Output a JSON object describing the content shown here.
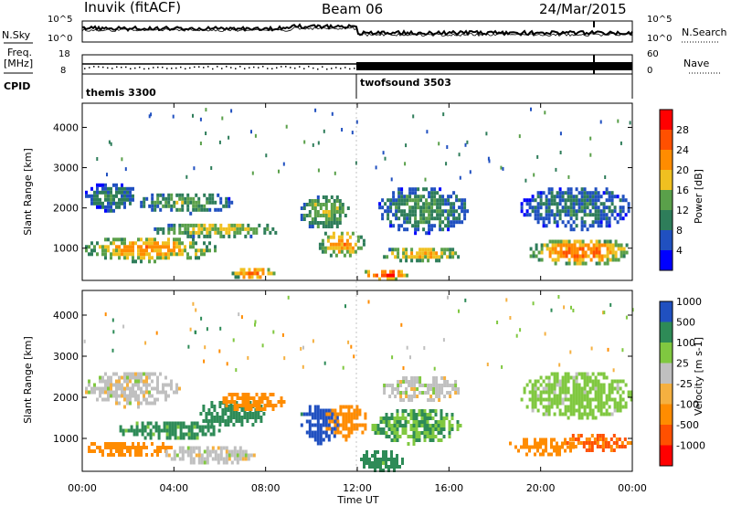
{
  "header": {
    "station": "Inuvik",
    "mode": "(fitACF)",
    "beam": "Beam 06",
    "date": "24/Mar/2015"
  },
  "noise_panel": {
    "left_label": "N.Sky",
    "left_ticks": [
      "10^5",
      "10^0"
    ],
    "right_ticks": [
      "10^5",
      "10^0"
    ],
    "right_label": "N.Search"
  },
  "freq_panel": {
    "left_label_line1": "Freq.",
    "left_label_line2": "[MHz]",
    "left_ticks": [
      "18",
      "8"
    ],
    "right_ticks": [
      "60",
      "0"
    ],
    "right_label": "Nave"
  },
  "cpid": {
    "label": "CPID",
    "segments": [
      {
        "name": "themis 3300",
        "start_hour": 0
      },
      {
        "name": "twofsound 3503",
        "start_hour": 12
      }
    ]
  },
  "x_axis": {
    "label": "Time UT",
    "ticks": [
      "00:00",
      "04:00",
      "08:00",
      "12:00",
      "16:00",
      "20:00",
      "00:00"
    ]
  },
  "colors": {
    "power_scale": [
      "#0000ff",
      "#2050c0",
      "#2e7d5a",
      "#5aa04a",
      "#f0c020",
      "#ff8c00",
      "#ff5000",
      "#ff0000"
    ],
    "velocity_scale": [
      "#ff0000",
      "#ff5000",
      "#ff8c00",
      "#f5b040",
      "#c0c0c0",
      "#80c840",
      "#2e8b57",
      "#2050c0"
    ]
  },
  "chart_data": [
    {
      "type": "heatmap",
      "title": "",
      "xlabel": "Time UT",
      "ylabel": "Slant Range [km]",
      "xlim": [
        0,
        24
      ],
      "ylim": [
        200,
        4600
      ],
      "yticks": [
        1000,
        2000,
        3000,
        4000
      ],
      "colorbar": {
        "label": "Power [dB]",
        "ticks": [
          "4",
          "8",
          "12",
          "16",
          "20",
          "24",
          "28"
        ],
        "range": [
          0,
          32
        ]
      },
      "features": [
        {
          "t0": 0.0,
          "t1": 5.8,
          "r0": 700,
          "r1": 1350,
          "power": 22
        },
        {
          "t0": 0.0,
          "t1": 2.4,
          "r0": 1950,
          "r1": 2700,
          "power": 10
        },
        {
          "t0": 2.4,
          "t1": 6.5,
          "r0": 1900,
          "r1": 2450,
          "power": 14
        },
        {
          "t0": 3.0,
          "t1": 8.6,
          "r0": 1300,
          "r1": 1700,
          "power": 18
        },
        {
          "t0": 6.4,
          "t1": 8.4,
          "r0": 250,
          "r1": 600,
          "power": 24
        },
        {
          "t0": 9.4,
          "t1": 11.6,
          "r0": 1500,
          "r1": 2400,
          "power": 16
        },
        {
          "t0": 10.2,
          "t1": 12.3,
          "r0": 800,
          "r1": 1500,
          "power": 22
        },
        {
          "t0": 12.2,
          "t1": 14.2,
          "r0": 250,
          "r1": 550,
          "power": 28
        },
        {
          "t0": 13.0,
          "t1": 16.5,
          "r0": 700,
          "r1": 1100,
          "power": 20
        },
        {
          "t0": 12.8,
          "t1": 16.8,
          "r0": 1400,
          "r1": 2600,
          "power": 12
        },
        {
          "t0": 19.4,
          "t1": 24.0,
          "r0": 600,
          "r1": 1300,
          "power": 24
        },
        {
          "t0": 19.0,
          "t1": 24.0,
          "r0": 1500,
          "r1": 2600,
          "power": 10
        }
      ]
    },
    {
      "type": "heatmap",
      "title": "",
      "xlabel": "Time UT",
      "ylabel": "Slant Range [km]",
      "xlim": [
        0,
        24
      ],
      "ylim": [
        200,
        4600
      ],
      "yticks": [
        1000,
        2000,
        3000,
        4000
      ],
      "colorbar": {
        "label": "Velocity [m s-1]",
        "ticks": [
          "-1000",
          "-500",
          "-100",
          "-25",
          "25",
          "100",
          "500",
          "1000"
        ],
        "range": [
          -1500,
          1500
        ]
      },
      "features": [
        {
          "t0": 0.0,
          "t1": 4.0,
          "r0": 600,
          "r1": 1000,
          "velocity": -300
        },
        {
          "t0": 0.0,
          "t1": 4.2,
          "r0": 1800,
          "r1": 2700,
          "velocity": 0
        },
        {
          "t0": 1.5,
          "t1": 6.0,
          "r0": 1000,
          "r1": 1500,
          "velocity": 150
        },
        {
          "t0": 5.0,
          "t1": 8.0,
          "r0": 1300,
          "r1": 2000,
          "velocity": 300
        },
        {
          "t0": 6.0,
          "t1": 8.8,
          "r0": 1700,
          "r1": 2200,
          "velocity": -300
        },
        {
          "t0": 3.5,
          "t1": 7.5,
          "r0": 400,
          "r1": 900,
          "velocity": 0
        },
        {
          "t0": 9.4,
          "t1": 11.2,
          "r0": 900,
          "r1": 1900,
          "velocity": 800
        },
        {
          "t0": 10.5,
          "t1": 12.4,
          "r0": 1000,
          "r1": 1900,
          "velocity": -300
        },
        {
          "t0": 12.0,
          "t1": 14.0,
          "r0": 200,
          "r1": 800,
          "velocity": 150
        },
        {
          "t0": 13.0,
          "t1": 16.5,
          "r0": 1900,
          "r1": 2600,
          "velocity": 0
        },
        {
          "t0": 12.5,
          "t1": 16.5,
          "r0": 900,
          "r1": 1800,
          "velocity": 100
        },
        {
          "t0": 18.5,
          "t1": 21.5,
          "r0": 600,
          "r1": 1100,
          "velocity": -300
        },
        {
          "t0": 21.0,
          "t1": 24.0,
          "r0": 700,
          "r1": 1200,
          "velocity": -500
        },
        {
          "t0": 19.0,
          "t1": 24.0,
          "r0": 1500,
          "r1": 2700,
          "velocity": 50
        }
      ]
    }
  ]
}
